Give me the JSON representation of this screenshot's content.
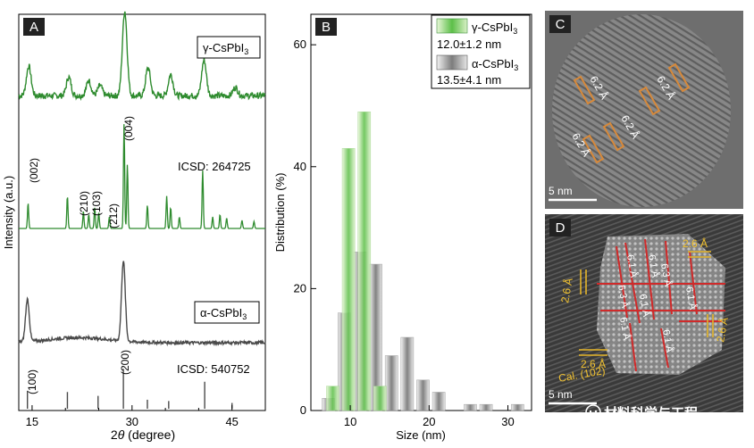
{
  "chart_data": [
    {
      "panel": "A",
      "type": "line",
      "xlabel_prefix": "2",
      "xlabel_symbol": "θ",
      "xlabel_suffix": " (degree)",
      "ylabel": "Intensity (a.u.)",
      "xlim": [
        13,
        50
      ],
      "xticks": [
        15,
        30,
        45
      ],
      "series": [
        {
          "name": "γ-CsPbI3",
          "label_main": "γ-CsPbI",
          "label_sub": "3",
          "color": "#2e8b2e",
          "baseline": 0.78,
          "noise": 0.012,
          "peaks": [
            [
              14.5,
              0.35
            ],
            [
              20.5,
              0.22
            ],
            [
              23.5,
              0.18
            ],
            [
              25.2,
              0.12
            ],
            [
              28.9,
              1.0
            ],
            [
              32.4,
              0.33
            ],
            [
              35.8,
              0.25
            ],
            [
              40.8,
              0.42
            ],
            [
              45.5,
              0.1
            ]
          ]
        },
        {
          "name": "ICSD: 264725",
          "color": "#2e8b2e",
          "baseline": 0.04,
          "noise": 0.0,
          "peaks": [
            [
              14.4,
              0.22
            ],
            [
              20.3,
              0.28
            ],
            [
              22.7,
              0.15
            ],
            [
              23.5,
              0.12
            ],
            [
              24.4,
              0.18
            ],
            [
              25.0,
              0.14
            ],
            [
              26.6,
              0.1
            ],
            [
              28.8,
              0.9
            ],
            [
              29.3,
              0.55
            ],
            [
              32.3,
              0.2
            ],
            [
              35.2,
              0.28
            ],
            [
              35.8,
              0.18
            ],
            [
              37.1,
              0.1
            ],
            [
              40.6,
              0.5
            ],
            [
              42.1,
              0.1
            ],
            [
              43.2,
              0.12
            ],
            [
              44.2,
              0.09
            ],
            [
              46.5,
              0.07
            ],
            [
              48.3,
              0.06
            ]
          ]
        },
        {
          "name": "α-CsPbI3",
          "label_main": "α-CsPbI",
          "label_sub": "3",
          "color": "#4a4a4a",
          "baseline": 0.05,
          "noise": 0.006,
          "peaks": [
            [
              14.3,
              0.5
            ],
            [
              28.7,
              0.95
            ]
          ]
        },
        {
          "name": "ICSD: 540752",
          "color": "#4a4a4a",
          "sticks": [
            [
              14.3,
              0.28
            ],
            [
              20.3,
              0.26
            ],
            [
              24.9,
              0.2
            ],
            [
              28.7,
              0.62
            ],
            [
              32.3,
              0.14
            ],
            [
              35.5,
              0.12
            ],
            [
              40.9,
              0.42
            ],
            [
              45.0,
              0.09
            ]
          ]
        }
      ],
      "annotations": [
        "(002)",
        "(210)",
        "(103)",
        "(212)",
        "(004)",
        "(100)",
        "(200)"
      ],
      "legend_icsd_gamma": "ICSD: 264725",
      "legend_icsd_alpha": "ICSD: 540752"
    },
    {
      "panel": "B",
      "type": "bar",
      "xlabel": "Size (nm)",
      "ylabel": "Distribution (%)",
      "xlim": [
        5,
        33
      ],
      "ylim": [
        0,
        65
      ],
      "xticks": [
        10,
        20,
        30
      ],
      "yticks": [
        0,
        20,
        40,
        60
      ],
      "series": [
        {
          "name": "γ-CsPbI3",
          "legend_main": "γ-CsPbI",
          "legend_sub": "3",
          "stat": "12.0±1.2 nm",
          "color": "#6fc45a",
          "bins": [
            [
              8,
              4
            ],
            [
              10,
              43
            ],
            [
              12,
              49
            ],
            [
              14,
              4
            ]
          ]
        },
        {
          "name": "α-CsPbI3",
          "legend_main": "α-CsPbI",
          "legend_sub": "3",
          "stat": "13.5±4.1 nm",
          "color": "#7a7a7a",
          "bins": [
            [
              7,
              2
            ],
            [
              9,
              16
            ],
            [
              11,
              26
            ],
            [
              13,
              24
            ],
            [
              15,
              9
            ],
            [
              17,
              12
            ],
            [
              19,
              5
            ],
            [
              21,
              3
            ],
            [
              25,
              1
            ],
            [
              27,
              1
            ],
            [
              31,
              1
            ]
          ]
        }
      ]
    },
    {
      "panel": "C",
      "type": "table",
      "description": "HRTEM image",
      "labels": [
        "6.2 Å",
        "6.2 Å",
        "6.2 Å",
        "6.2 Å"
      ],
      "scale_bar": "5 nm"
    },
    {
      "panel": "D",
      "type": "table",
      "description": "HRTEM image",
      "labels": [
        "6.1 Å",
        "6.1 Å",
        "6.3 Å",
        "6.3 Å",
        "6.1 Å",
        "6.1 Å",
        "6.1 Å",
        "6.1 Å"
      ],
      "yellow_labels": [
        "2.6 Å",
        "2.6 Å",
        "2.6 Å",
        "2.6 Å"
      ],
      "cal_label": "Cal. (102)",
      "scale_bar": "5 nm"
    }
  ],
  "watermark": "材料科学与工程"
}
